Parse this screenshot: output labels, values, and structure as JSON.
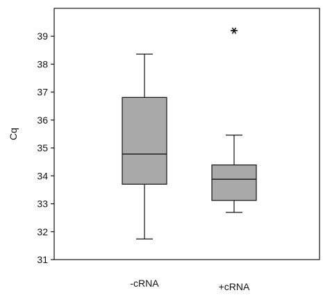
{
  "chart_data": {
    "type": "box",
    "ylabel": "Cq",
    "xlabel": "",
    "ylim": [
      31,
      40
    ],
    "yticks": [
      31,
      32,
      33,
      34,
      35,
      36,
      37,
      38,
      39
    ],
    "ytick_labels": [
      "31",
      "32",
      "33",
      "34",
      "35",
      "36",
      "37",
      "38",
      "39"
    ],
    "grid": false,
    "box_fill_color": "#a9a9a9",
    "line_color": "#111111",
    "categories": [
      "-cRNA",
      "+cRNA"
    ],
    "boxes": [
      {
        "category": "-cRNA",
        "whisker_low": 31.74,
        "q1": 33.7,
        "median": 34.78,
        "q3": 36.81,
        "whisker_high": 38.36,
        "outliers": []
      },
      {
        "category": "+cRNA",
        "whisker_low": 32.69,
        "q1": 33.12,
        "median": 33.88,
        "q3": 34.39,
        "whisker_high": 35.46,
        "outliers": [
          39.2
        ]
      }
    ]
  }
}
